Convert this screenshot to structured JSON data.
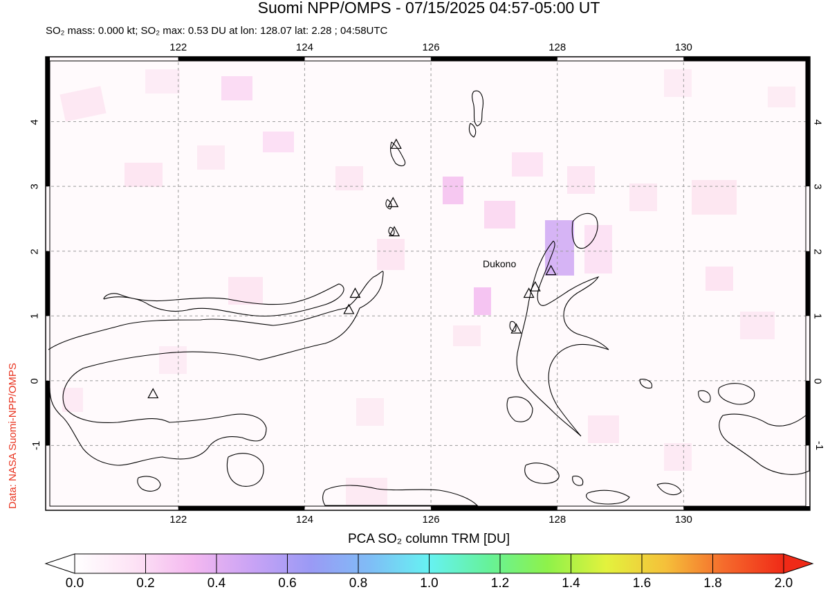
{
  "title": "Suomi NPP/OMPS - 07/15/2025 04:57-05:00 UT",
  "subtitle": "SO₂ mass: 0.000 kt; SO₂ max: 0.53 DU at lon: 128.07 lat: 2.28 ; 04:58UTC",
  "credit": "Data: NASA Suomi-NPP/OMPS",
  "volcano_label": "Dukono",
  "map": {
    "lon_range": [
      119.9,
      132.0
    ],
    "lat_range": [
      -2.0,
      5.0
    ],
    "lon_ticks": [
      "122",
      "124",
      "126",
      "128",
      "130"
    ],
    "lat_ticks": [
      "4",
      "3",
      "2",
      "1",
      "0",
      "-1"
    ],
    "grid": true
  },
  "colorbar": {
    "title": "PCA SO₂ column TRM [DU]",
    "range": [
      0.0,
      2.0
    ],
    "tick_labels": [
      "0.0",
      "0.2",
      "0.4",
      "0.6",
      "0.8",
      "1.0",
      "1.2",
      "1.4",
      "1.6",
      "1.8",
      "2.0"
    ],
    "colors": [
      "#ffffff",
      "#fde3f5",
      "#f4b8f0",
      "#c9a3f5",
      "#9a9af5",
      "#7fbdf6",
      "#66f2f2",
      "#66f29a",
      "#8ef24a",
      "#e3f23d",
      "#f5c03a",
      "#f56a2c",
      "#f02a17"
    ]
  },
  "volcanoes": [
    {
      "lon": 121.6,
      "lat": -0.2
    },
    {
      "lon": 124.7,
      "lat": 1.1
    },
    {
      "lon": 124.8,
      "lat": 1.35
    },
    {
      "lon": 125.45,
      "lat": 3.65
    },
    {
      "lon": 125.4,
      "lat": 2.75
    },
    {
      "lon": 125.42,
      "lat": 2.3
    },
    {
      "lon": 127.35,
      "lat": 0.8
    },
    {
      "lon": 127.55,
      "lat": 1.35
    },
    {
      "lon": 127.65,
      "lat": 1.45
    },
    {
      "lon": 127.9,
      "lat": 1.7
    }
  ]
}
